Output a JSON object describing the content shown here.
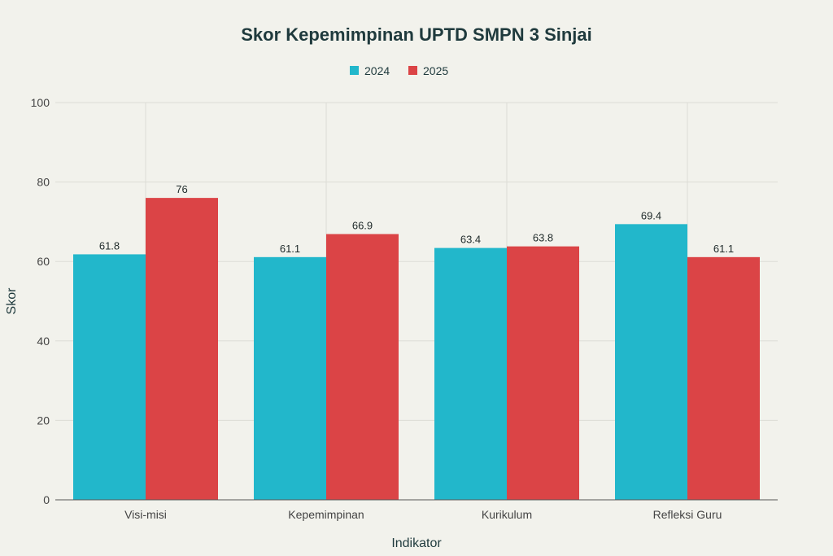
{
  "chart_data": {
    "type": "bar",
    "title": "Skor Kepemimpinan UPTD SMPN 3 Sinjai",
    "xlabel": "Indikator",
    "ylabel": "Skor",
    "categories": [
      "Visi-misi",
      "Kepemimpinan",
      "Kurikulum",
      "Refleksi Guru"
    ],
    "series": [
      {
        "name": "2024",
        "values": [
          61.8,
          61.1,
          63.4,
          69.4
        ],
        "color": "#22b7cb"
      },
      {
        "name": "2025",
        "values": [
          76,
          66.9,
          63.8,
          61.1
        ],
        "color": "#db4446"
      }
    ],
    "ylim": [
      0,
      100
    ],
    "yticks": [
      0,
      20,
      40,
      60,
      80,
      100
    ],
    "grid": true,
    "legend_position": "top-center"
  }
}
